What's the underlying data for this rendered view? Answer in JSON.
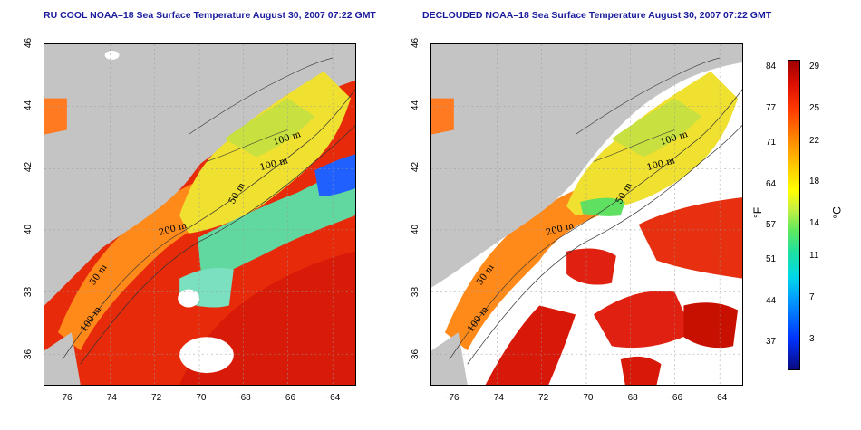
{
  "left_panel": {
    "title": "RU COOL NOAA–18 Sea Surface Temperature August 30, 2007 07:22 GMT",
    "contour_labels": [
      "100 m",
      "100 m",
      "50 m",
      "200 m",
      "50 m",
      "100 m"
    ]
  },
  "right_panel": {
    "title": "DECLOUDED NOAA–18 Sea Surface Temperature August 30, 2007 07:22 GMT",
    "contour_labels": [
      "100 m",
      "100 m",
      "50 m",
      "200 m",
      "50 m",
      "100 m"
    ]
  },
  "axes": {
    "x_ticks": [
      "−76",
      "−74",
      "−72",
      "−70",
      "−68",
      "−66",
      "−64"
    ],
    "y_ticks": [
      "46",
      "44",
      "42",
      "40",
      "38",
      "36"
    ],
    "x_range": [
      -77,
      -63
    ],
    "y_range": [
      35,
      46
    ]
  },
  "colorbar": {
    "fahrenheit_unit": "°F",
    "celsius_unit": "°C",
    "fahrenheit_ticks": [
      "84",
      "77",
      "71",
      "64",
      "57",
      "51",
      "44",
      "37"
    ],
    "celsius_ticks": [
      "29",
      "25",
      "22",
      "18",
      "14",
      "11",
      "7",
      "3"
    ]
  },
  "colors": {
    "title": "#1a1a9c",
    "land": "#c4c4c4",
    "cloud_masked": "#ffffff",
    "warm": "#e82000",
    "cool": "#f0e020"
  }
}
